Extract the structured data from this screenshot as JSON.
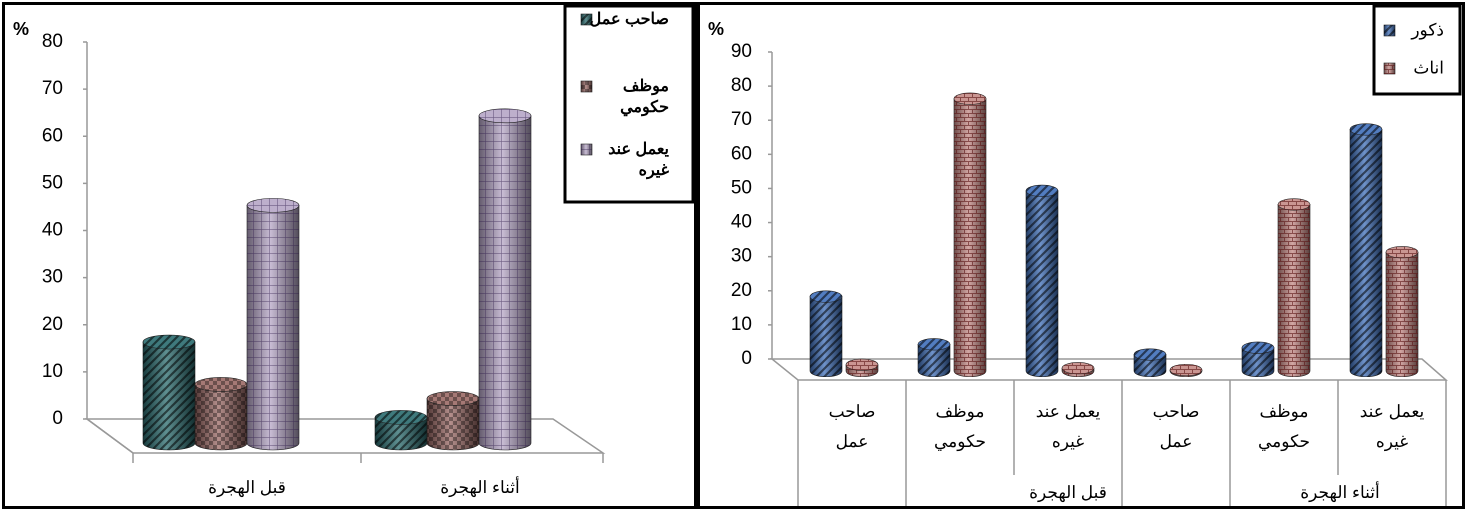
{
  "chart_data": [
    {
      "type": "bar",
      "title": "",
      "ylabel": "%",
      "ylim": [
        0,
        80
      ],
      "yticks": [
        "0",
        "10",
        "20",
        "30",
        "40",
        "50",
        "60",
        "70",
        "80"
      ],
      "categories": [
        "قبل الهجرة",
        "أثناء الهجرة"
      ],
      "series": [
        {
          "name": "صاحب عمل",
          "values": [
            21,
            5
          ],
          "color": "#2a6b6e"
        },
        {
          "name": "موظف حكومي",
          "values": [
            12,
            9
          ],
          "color": "#9b6a66"
        },
        {
          "name": "يعمل عند غيره",
          "values": [
            50,
            69
          ],
          "color": "#b6a6c6"
        }
      ],
      "legend_position": "top-right"
    },
    {
      "type": "bar",
      "title": "",
      "ylabel": "%",
      "ylim": [
        0,
        90
      ],
      "yticks": [
        "0",
        "10",
        "20",
        "30",
        "40",
        "50",
        "60",
        "70",
        "80",
        "90"
      ],
      "categories": [
        "صاحب عمل",
        "موظف حكومي",
        "يعمل عند غيره",
        "صاحب عمل",
        "موظف حكومي",
        "يعمل عند غيره"
      ],
      "category_lines": [
        [
          "صاحب",
          "عمل"
        ],
        [
          "موظف",
          "حكومي"
        ],
        [
          "يعمل عند",
          "غيره"
        ],
        [
          "صاحب",
          "عمل"
        ],
        [
          "موظف",
          "حكومي"
        ],
        [
          "يعمل عند",
          "غيره"
        ]
      ],
      "groups": [
        {
          "label": "قبل الهجرة",
          "span": [
            1,
            2
          ]
        },
        {
          "label": "أثناء الهجرة",
          "span": [
            4,
            5
          ]
        }
      ],
      "series": [
        {
          "name": "ذكور",
          "values": [
            23,
            9,
            54,
            6,
            8,
            72
          ],
          "color": "#3f6fba"
        },
        {
          "name": "اناث",
          "values": [
            3,
            81,
            2,
            0.5,
            50,
            36
          ],
          "color": "#c48a86"
        }
      ],
      "legend_position": "top-right"
    }
  ]
}
